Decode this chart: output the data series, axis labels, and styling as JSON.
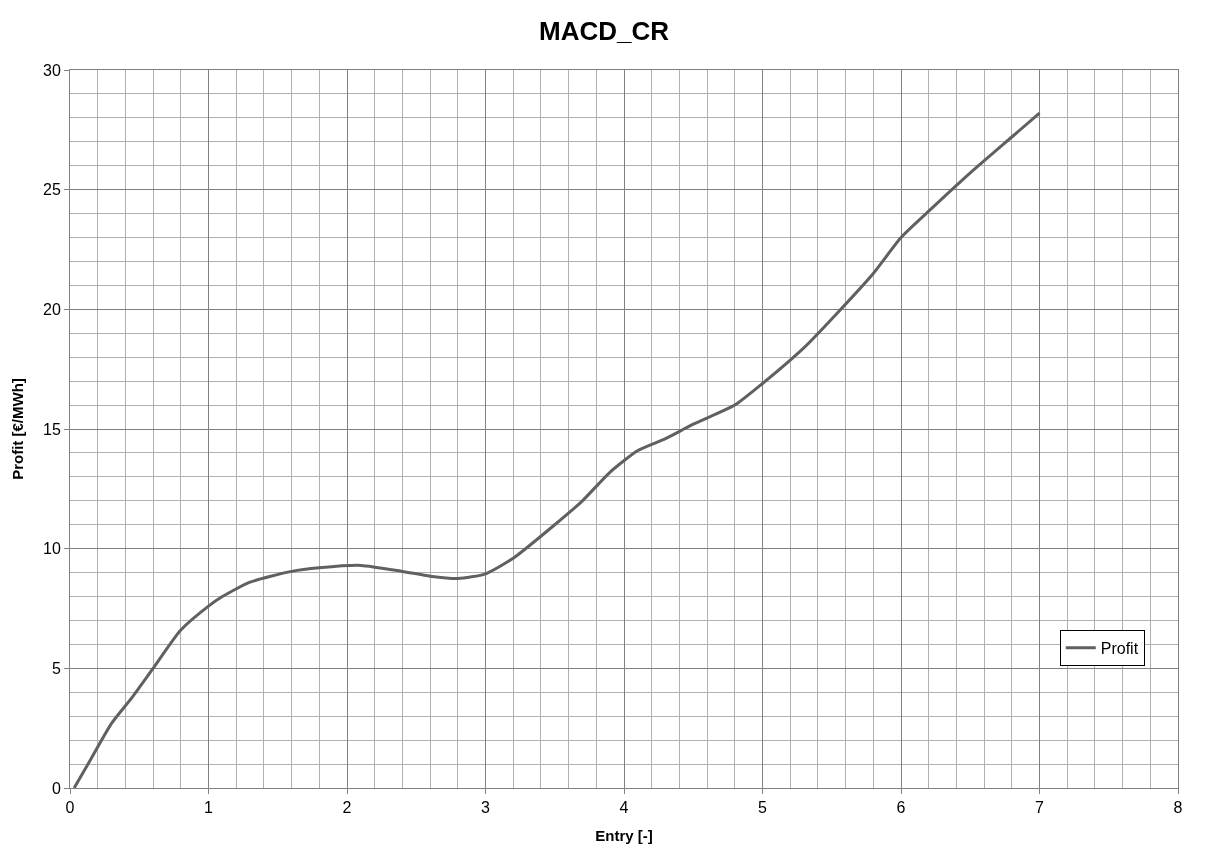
{
  "chart_data": {
    "type": "line",
    "title": "MACD_CR",
    "xlabel": "Entry [-]",
    "ylabel": "Profit [€/MWh]",
    "series": [
      {
        "name": "Profit",
        "color": "#606060",
        "x": [
          0.03,
          0.15,
          0.3,
          0.45,
          0.6,
          0.8,
          1.0,
          1.1,
          1.3,
          1.6,
          1.8,
          2.1,
          2.4,
          2.6,
          2.8,
          3.0,
          3.2,
          3.5,
          3.7,
          3.9,
          4.1,
          4.3,
          4.5,
          4.8,
          5.0,
          5.3,
          5.5,
          5.8,
          6.0,
          6.2,
          6.5,
          6.8,
          7.0
        ],
        "values": [
          0,
          1.2,
          2.7,
          3.8,
          5.0,
          6.6,
          7.6,
          8.0,
          8.6,
          9.05,
          9.2,
          9.3,
          9.05,
          8.85,
          8.75,
          8.95,
          9.6,
          11.0,
          12.0,
          13.2,
          14.1,
          14.6,
          15.2,
          16.0,
          16.9,
          18.4,
          19.6,
          21.5,
          23.0,
          24.1,
          25.7,
          27.2,
          28.2
        ]
      }
    ],
    "xlim": [
      0,
      8
    ],
    "xticks": [
      0,
      1,
      2,
      3,
      4,
      5,
      6,
      7,
      8
    ],
    "ylim": [
      0,
      30
    ],
    "yticks": [
      0,
      5,
      10,
      15,
      20,
      25,
      30
    ],
    "grid": true,
    "legend": "bottom right",
    "line_style": "solid",
    "marker": "none"
  }
}
